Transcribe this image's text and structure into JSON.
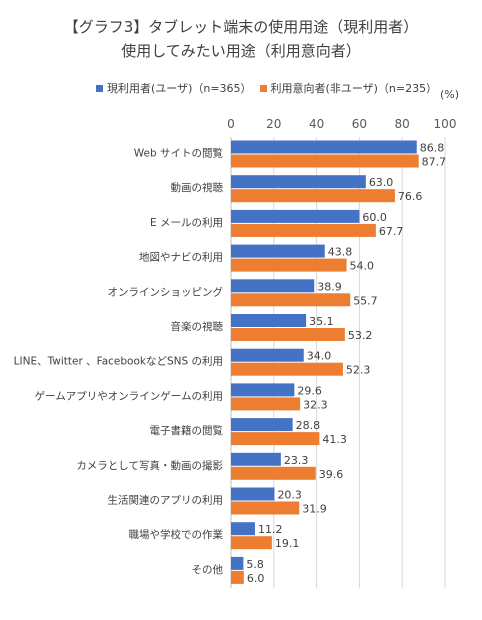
{
  "chart_data": {
    "type": "bar",
    "orientation": "horizontal",
    "title": "【グラフ3】タブレット端末の使用用途（現利用者）",
    "subtitle": "使用してみたい用途（利用意向者）",
    "unit": "(%)",
    "xlim": [
      0,
      100
    ],
    "xticks": [
      "0",
      "20",
      "40",
      "60",
      "80",
      "100"
    ],
    "legend_position": "top",
    "grid": true,
    "categories": [
      "Web サイトの閲覧",
      "動画の視聴",
      "E メールの利用",
      "地図やナビの利用",
      "オンラインショッピング",
      "音楽の視聴",
      "LINE、Twitter 、FacebookなどSNS の利用",
      "ゲームアプリやオンラインゲームの利用",
      "電子書籍の閲覧",
      "カメラとして写真・動画の撮影",
      "生活関連のアプリの利用",
      "職場や学校での作業",
      "その他"
    ],
    "series": [
      {
        "name": "現利用者(ユーザ)（n=365）",
        "color": "#4472C4",
        "values": [
          86.8,
          63.0,
          60.0,
          43.8,
          38.9,
          35.1,
          34.0,
          29.6,
          28.8,
          23.3,
          20.3,
          11.2,
          5.8
        ],
        "labels": [
          "86.8",
          "63.0",
          "60.0",
          "43.8",
          "38.9",
          "35.1",
          "34.0",
          "29.6",
          "28.8",
          "23.3",
          "20.3",
          "11.2",
          "5.8"
        ]
      },
      {
        "name": "利用意向者(非ユーザ)（n=235）",
        "color": "#ED7D31",
        "values": [
          87.7,
          76.6,
          67.7,
          54.0,
          55.7,
          53.2,
          52.3,
          32.3,
          41.3,
          39.6,
          31.9,
          19.1,
          6.0
        ],
        "labels": [
          "87.7",
          "76.6",
          "67.7",
          "54.0",
          "55.7",
          "53.2",
          "52.3",
          "32.3",
          "41.3",
          "39.6",
          "31.9",
          "19.1",
          "6.0"
        ]
      }
    ]
  }
}
